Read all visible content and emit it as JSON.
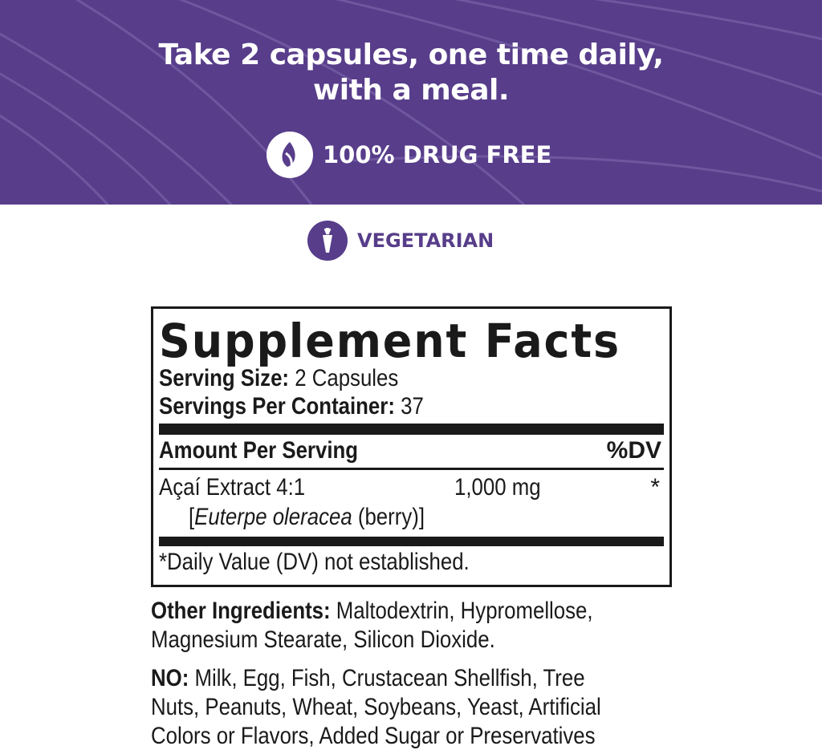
{
  "banner": {
    "line1": "Take 2 capsules, one time daily,",
    "line2": "with a meal.",
    "badge_label": "100% DRUG FREE",
    "badge_icon": "leaf-icon",
    "color": "#573d8a"
  },
  "vegetarian": {
    "label": "VEGETARIAN",
    "icon": "carrot-icon",
    "color": "#573d8a"
  },
  "facts": {
    "title": "Supplement Facts",
    "serving_size_label": "Serving Size:",
    "serving_size_value": "2 Capsules",
    "servings_label": "Servings Per Container:",
    "servings_value": "37",
    "amount_header": "Amount Per Serving",
    "dv_header": "%DV",
    "ingredient": {
      "name": "Açaí Extract 4:1",
      "amount": "1,000 mg",
      "dv": "*",
      "source_open": "[",
      "source_latin": "Euterpe oleracea",
      "source_rest": " (berry)]"
    },
    "footnote": "*Daily Value (DV) not established."
  },
  "other": {
    "label": "Other Ingredients:",
    "line1": "Maltodextrin, Hypromellose,",
    "line2": "Magnesium Stearate, Silicon Dioxide."
  },
  "no": {
    "label": "NO:",
    "line1": "Milk, Egg, Fish, Crustacean Shellfish, Tree",
    "line2": "Nuts, Peanuts, Wheat, Soybeans, Yeast, Artificial",
    "line3": "Colors or Flavors, Added Sugar or Preservatives"
  }
}
